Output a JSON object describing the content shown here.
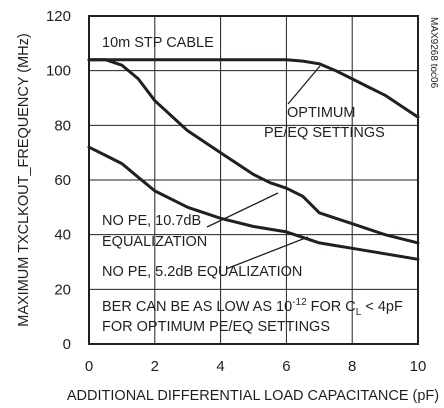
{
  "chart_data": {
    "type": "line",
    "title": "",
    "xlabel": "ADDITIONAL DIFFERENTIAL LOAD CAPACITANCE (pF)",
    "ylabel": "MAXIMUM TXCLKOUT_FREQUENCY (MHz)",
    "xlim": [
      0,
      10
    ],
    "ylim": [
      0,
      120
    ],
    "xticks": [
      "0",
      "2",
      "4",
      "6",
      "8",
      "10"
    ],
    "yticks": [
      "0",
      "20",
      "40",
      "60",
      "80",
      "100",
      "120"
    ],
    "grid": true,
    "legend": "none",
    "series": [
      {
        "name": "OPTIMUM PE/EQ SETTINGS",
        "x": [
          0,
          0.5,
          1,
          1.5,
          2,
          3,
          4,
          5,
          6,
          6.5,
          7,
          7.5,
          8,
          8.5,
          9,
          9.5,
          10
        ],
        "y": [
          104,
          104,
          104,
          104,
          104,
          104,
          104,
          104,
          104,
          103.5,
          102.5,
          100,
          97,
          94,
          91,
          87,
          83
        ]
      },
      {
        "name": "NO PE, 10.7dB EQUALIZATION",
        "x": [
          0,
          0.5,
          1,
          1.5,
          2,
          3,
          4,
          5,
          5.5,
          6,
          6.5,
          7,
          7.5,
          8,
          9,
          10
        ],
        "y": [
          104,
          104,
          102,
          97,
          89,
          78,
          70,
          62,
          59,
          57,
          54,
          48,
          46,
          44,
          40,
          37
        ]
      },
      {
        "name": "NO PE, 5.2dB EQUALIZATION",
        "x": [
          0,
          0.5,
          1,
          1.5,
          2,
          3,
          4,
          5,
          6,
          6.5,
          7,
          7.5,
          8,
          9,
          10
        ],
        "y": [
          72,
          69,
          66,
          61,
          56,
          50,
          46,
          43,
          41,
          39,
          37,
          36,
          35,
          33,
          31
        ]
      }
    ],
    "annotations": {
      "cable": "10m STP CABLE",
      "optimum_line1": "OPTIMUM",
      "optimum_line2": "PE/EQ SETTINGS",
      "nope107_line1": "NO PE, 10.7dB",
      "nope107_line2": "EQUALIZATION",
      "nope52": "NO PE, 5.2dB EQUALIZATION",
      "ber_part1": "BER CAN BE AS LOW AS 10",
      "ber_exp": "-12",
      "ber_part2": " FOR C",
      "ber_sub": "L",
      "ber_part3": " < 4pF",
      "ber_line2": "FOR OPTIMUM PE/EQ SETTINGS",
      "figure_id": "MAX9268 toc06"
    },
    "line_color": "#231f20"
  }
}
